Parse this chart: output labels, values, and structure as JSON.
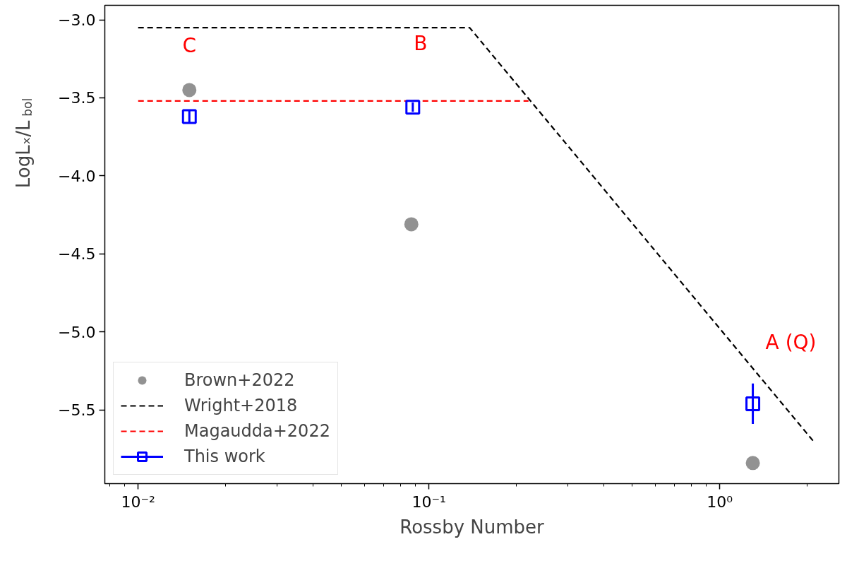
{
  "chart_data": {
    "type": "scatter",
    "xlabel": "Rossby Number",
    "ylabel": "LogLₓ/L$_{bol}$",
    "log": "x",
    "xlim": [
      0.00768,
      2.57
    ],
    "ylim": [
      -5.972,
      -2.907
    ],
    "xticks": [
      {
        "value": 0.01,
        "label": "10⁻²"
      },
      {
        "value": 0.1,
        "label": "10⁻¹"
      },
      {
        "value": 1,
        "label": "10⁰"
      }
    ],
    "yticks": [
      {
        "value": -3.0,
        "label": "−3.0"
      },
      {
        "value": -3.5,
        "label": "−3.5"
      },
      {
        "value": -4.0,
        "label": "−4.0"
      },
      {
        "value": -4.5,
        "label": "−4.5"
      },
      {
        "value": -5.0,
        "label": "−5.0"
      },
      {
        "value": -5.5,
        "label": "−5.5"
      }
    ],
    "grid": false,
    "legend": "bottom left",
    "series": [
      {
        "name": "Brown+2022",
        "type": "scatter",
        "marker": "circle",
        "color": "#929292",
        "x": [
          0.015,
          0.087,
          1.3
        ],
        "values": [
          -3.45,
          -4.31,
          -5.84
        ]
      },
      {
        "name": "Wright+2018",
        "type": "line",
        "marker": "none",
        "line_style": "dashed",
        "color": "#000000",
        "x": [
          0.01,
          0.138,
          2.1
        ],
        "values": [
          -3.05,
          -3.05,
          -5.7
        ]
      },
      {
        "name": "Magaudda+2022",
        "type": "line",
        "marker": "none",
        "line_style": "dashed",
        "color": "#ff0000",
        "x": [
          0.01,
          0.22
        ],
        "values": [
          -3.52,
          -3.52
        ]
      },
      {
        "name": "This work",
        "type": "scatter",
        "marker": "square",
        "color": "#0000ff",
        "x": [
          0.015,
          0.088,
          1.3
        ],
        "values": [
          -3.62,
          -3.56,
          -5.46
        ],
        "errors": [
          0.04,
          0.03,
          0.13
        ]
      }
    ],
    "annotations": [
      "C",
      "B",
      "A (Q)"
    ]
  }
}
